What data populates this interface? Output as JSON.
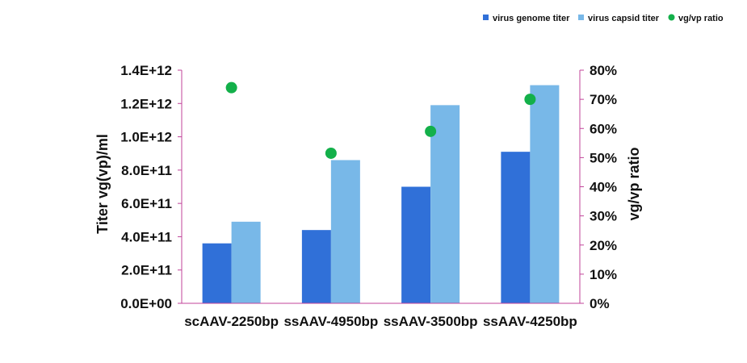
{
  "chart_data": {
    "type": "bar",
    "categories": [
      "scAAV-2250bp",
      "ssAAV-4950bp",
      "ssAAV-3500bp",
      "ssAAV-4250bp"
    ],
    "series": [
      {
        "name": "virus genome titer",
        "axis": "left",
        "kind": "bar",
        "color": "#3070d8",
        "values": [
          360000000000.0,
          440000000000.0,
          700000000000.0,
          910000000000.0
        ]
      },
      {
        "name": "virus capsid titer",
        "axis": "left",
        "kind": "bar",
        "color": "#78b8e8",
        "values": [
          490000000000.0,
          860000000000.0,
          1190000000000.0,
          1310000000000.0
        ]
      },
      {
        "name": "vg/vp ratio",
        "axis": "right",
        "kind": "scatter",
        "color": "#13b04a",
        "values": [
          0.74,
          0.515,
          0.59,
          0.7
        ]
      }
    ],
    "ylabel": "Titer vg(vp)/ml",
    "y2label": "vg/vp ratio",
    "ylim": [
      0,
      1400000000000.0
    ],
    "y2lim": [
      0,
      0.8
    ],
    "yticks": [
      "0.0E+00",
      "2.0E+11",
      "4.0E+11",
      "6.0E+11",
      "8.0E+11",
      "1.0E+12",
      "1.2E+12",
      "1.4E+12"
    ],
    "y2ticks": [
      "0%",
      "10%",
      "20%",
      "30%",
      "40%",
      "50%",
      "60%",
      "70%",
      "80%"
    ],
    "grid": false,
    "legend_position": "top-right",
    "axis_color": "#c0439a"
  }
}
